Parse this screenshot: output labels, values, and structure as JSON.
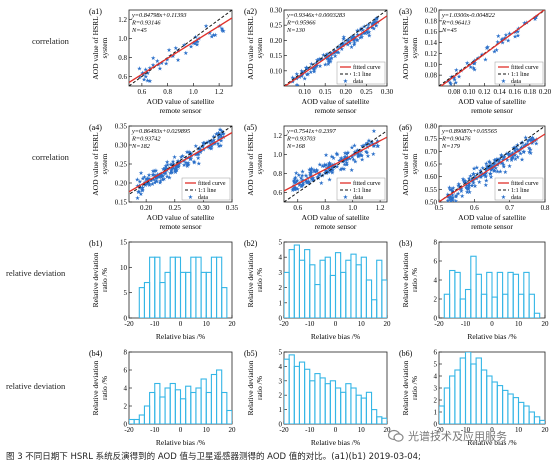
{
  "row_labels": {
    "correlation": "correlation",
    "relative_deviation": "relative deviation"
  },
  "caption": "图 3  不同日期下 HSRL 系统反演得到的 AOD 值与卫星遥感器测得的 AOD 值的对比。(a1)(b1) 2019-03-04;",
  "watermark": "光谱技术及应用服务",
  "colors": {
    "data": "#2a6fc9",
    "fit": "#e0302a",
    "line11": "#111111",
    "hist": "#35b6e6"
  },
  "chart_data": [
    {
      "id": "a1",
      "type": "scatter",
      "panel_label": "(a1)",
      "xlabel": "AOD value of satellite remote sensor",
      "ylabel": "AOD value of HSRL system",
      "xlim": [
        0.5,
        1.3
      ],
      "ylim": [
        0.5,
        1.3
      ],
      "xticks": [
        "0.6",
        "0.8",
        "1.0",
        "1.2"
      ],
      "yticks": [
        "0.6",
        "0.8",
        "1.0",
        "1.2"
      ],
      "annotation": [
        "y=0.84798x+0.11393",
        "R=0.93146",
        "N=45"
      ],
      "fit": {
        "slope": 0.84798,
        "intercept": 0.11393
      },
      "legend": [
        "fitted curve",
        "1:1 line",
        "data"
      ],
      "legend_placement": "none",
      "n_points": 45,
      "scatter": 0.05
    },
    {
      "id": "a2",
      "type": "scatter",
      "panel_label": "(a2)",
      "xlabel": "AOD value of satellite remote sensor",
      "ylabel": "AOD value of HSRL system",
      "xlim": [
        0.05,
        0.3
      ],
      "ylim": [
        0.05,
        0.3
      ],
      "xticks": [
        "0.10",
        "0.15",
        "0.20",
        "0.25",
        "0.30"
      ],
      "yticks": [
        "0.10",
        "0.15",
        "0.20",
        "0.25",
        "0.30"
      ],
      "annotation": [
        "y=0.9346x+0.0003283",
        "R=0.95966",
        "N=130"
      ],
      "fit": {
        "slope": 0.9346,
        "intercept": 0.0003283
      },
      "legend": [
        "fitted curve",
        "1:1 line",
        "data"
      ],
      "legend_placement": "bottom-right",
      "n_points": 130,
      "scatter": 0.012
    },
    {
      "id": "a3",
      "type": "scatter",
      "panel_label": "(a3)",
      "xlabel": "AOD value of satellite remote sensor",
      "ylabel": "AOD value of HSRL system",
      "xlim": [
        0.06,
        0.2
      ],
      "ylim": [
        0.06,
        0.2
      ],
      "xticks": [
        "0.08",
        "0.10",
        "0.12",
        "0.14",
        "0.16",
        "0.18",
        "0.20"
      ],
      "yticks": [
        "0.08",
        "0.10",
        "0.12",
        "0.14",
        "0.16",
        "0.18",
        "0.20"
      ],
      "annotation": [
        "y=1.0300x-0.004822",
        "R=0.96413",
        "N=45"
      ],
      "fit": {
        "slope": 1.03,
        "intercept": -0.004822
      },
      "legend": [
        "fitted curve",
        "1:1 line",
        "data"
      ],
      "legend_placement": "bottom-right",
      "n_points": 45,
      "scatter": 0.007
    },
    {
      "id": "a4",
      "type": "scatter",
      "panel_label": "(a4)",
      "xlabel": "AOD value of satellite remote sensor",
      "ylabel": "AOD value of HSRL system",
      "xlim": [
        0.17,
        0.35
      ],
      "ylim": [
        0.15,
        0.35
      ],
      "xticks": [
        "0.20",
        "0.25",
        "0.30",
        "0.35"
      ],
      "yticks": [
        "0.15",
        "0.20",
        "0.25",
        "0.30",
        "0.35"
      ],
      "annotation": [
        "y=0.86493x+0.029895",
        "R=0.93742",
        "N=182"
      ],
      "fit": {
        "slope": 0.86493,
        "intercept": 0.029895
      },
      "legend": [
        "fitted curve",
        "1:1 line",
        "data"
      ],
      "legend_placement": "bottom-right",
      "n_points": 182,
      "scatter": 0.012
    },
    {
      "id": "a5",
      "type": "scatter",
      "panel_label": "(a5)",
      "xlabel": "AOD value of satellite remote sensor",
      "ylabel": "AOD value of HSRL system",
      "xlim": [
        0.5,
        1.25
      ],
      "ylim": [
        0.5,
        1.3
      ],
      "xticks": [
        "0.6",
        "0.8",
        "1.0",
        "1.2"
      ],
      "yticks": [
        "0.6",
        "0.8",
        "1.0",
        "1.2"
      ],
      "annotation": [
        "y=0.7541x+0.2397",
        "R=0.93703",
        "N=168"
      ],
      "fit": {
        "slope": 0.7541,
        "intercept": 0.2397
      },
      "legend": [
        "fitted curve",
        "1:1 line",
        "data"
      ],
      "legend_placement": "bottom-right",
      "n_points": 168,
      "scatter": 0.045
    },
    {
      "id": "a6",
      "type": "scatter",
      "panel_label": "(a6)",
      "xlabel": "AOD value of satellite remote sensor",
      "ylabel": "AOD value of HSRL system",
      "xlim": [
        0.5,
        0.8
      ],
      "ylim": [
        0.5,
        0.8
      ],
      "xticks": [
        "0.5",
        "0.6",
        "0.7",
        "0.8"
      ],
      "yticks": [
        "0.50",
        "0.55",
        "0.60",
        "0.65",
        "0.70",
        "0.75",
        "0.80"
      ],
      "annotation": [
        "y=0.89087x+0.05565",
        "R=0.90476",
        "N=179"
      ],
      "fit": {
        "slope": 0.89087,
        "intercept": 0.05565
      },
      "legend": [
        "fitted curve",
        "1:1 line",
        "data"
      ],
      "legend_placement": "bottom-right",
      "n_points": 179,
      "scatter": 0.018
    },
    {
      "id": "b1",
      "type": "histogram",
      "panel_label": "(b1)",
      "xlabel": "Relative bias /%",
      "ylabel": "Relative deviation ratio /%",
      "xlim": [
        -20,
        20
      ],
      "ylim": [
        0,
        15
      ],
      "xticks": [
        "-20",
        "-10",
        "0",
        "10",
        "20"
      ],
      "yticks": [
        "0",
        "5",
        "10",
        "15"
      ],
      "bins_x": [
        -16,
        -14,
        -12,
        -10,
        -8,
        -6,
        -4,
        -2,
        0,
        2,
        4,
        6,
        8,
        10,
        12,
        14,
        16
      ],
      "values": [
        6,
        7,
        12,
        12,
        7,
        9,
        12,
        12,
        9,
        9,
        12,
        12,
        9,
        9,
        12,
        12,
        6
      ]
    },
    {
      "id": "b2",
      "type": "histogram",
      "panel_label": "(b2)",
      "xlabel": "Relative bias /%",
      "ylabel": "Relative deviation ratio /%",
      "xlim": [
        -20,
        20
      ],
      "ylim": [
        0,
        5
      ],
      "xticks": [
        "-20",
        "-10",
        "0",
        "10",
        "20"
      ],
      "yticks": [
        "0",
        "1",
        "2",
        "3",
        "4",
        "5"
      ],
      "bins_x": [
        -20,
        -18,
        -16,
        -14,
        -12,
        -10,
        -8,
        -6,
        -4,
        -2,
        0,
        2,
        4,
        6,
        8,
        10,
        12,
        14,
        16,
        18
      ],
      "values": [
        3.0,
        4.5,
        4.8,
        3.8,
        4.5,
        3.5,
        2.2,
        3.8,
        4.0,
        2.8,
        4.3,
        3.0,
        3.8,
        4.2,
        3.5,
        4.0,
        2.5,
        1.2,
        3.8,
        2.5
      ]
    },
    {
      "id": "b3",
      "type": "histogram",
      "panel_label": "(b3)",
      "xlabel": "Relative bias /%",
      "ylabel": "Relative deviation ratio /%",
      "xlim": [
        -20,
        20
      ],
      "ylim": [
        0,
        8
      ],
      "xticks": [
        "-20",
        "-10",
        "0",
        "10",
        "20"
      ],
      "yticks": [
        "0",
        "2",
        "4",
        "6",
        "8"
      ],
      "bins_x": [
        -18,
        -16,
        -14,
        -12,
        -10,
        -8,
        -6,
        -4,
        -2,
        0,
        2,
        4,
        6,
        8,
        10,
        12,
        14,
        16
      ],
      "values": [
        2.5,
        5.0,
        4.8,
        2.0,
        3.0,
        6.5,
        4.6,
        2.5,
        4.8,
        2.2,
        4.8,
        2.5,
        4.8,
        4.6,
        2.5,
        4.8,
        2.5,
        0.5
      ]
    },
    {
      "id": "b4",
      "type": "histogram",
      "panel_label": "(b4)",
      "xlabel": "Relative bias /%",
      "ylabel": "Relative deviation ratio /%",
      "xlim": [
        -20,
        20
      ],
      "ylim": [
        0,
        8
      ],
      "xticks": [
        "-20",
        "-10",
        "0",
        "10",
        "20"
      ],
      "yticks": [
        "0",
        "2",
        "4",
        "6",
        "8"
      ],
      "bins_x": [
        -20,
        -18,
        -16,
        -14,
        -12,
        -10,
        -8,
        -6,
        -4,
        -2,
        0,
        2,
        4,
        6,
        8,
        10,
        12,
        14,
        16,
        18
      ],
      "values": [
        0.5,
        0.5,
        1.0,
        2.0,
        3.5,
        4.5,
        3.0,
        4.0,
        4.5,
        3.8,
        2.8,
        4.2,
        3.5,
        4.0,
        5.0,
        3.5,
        5.5,
        6.0,
        3.5,
        1.5
      ]
    },
    {
      "id": "b5",
      "type": "histogram",
      "panel_label": "(b5)",
      "xlabel": "Relative bias /%",
      "ylabel": "Relative deviation ratio /%",
      "xlim": [
        -20,
        20
      ],
      "ylim": [
        0,
        5
      ],
      "xticks": [
        "-20",
        "-10",
        "0",
        "10",
        "20"
      ],
      "yticks": [
        "0",
        "1",
        "2",
        "3",
        "4",
        "5"
      ],
      "bins_x": [
        -20,
        -18,
        -16,
        -14,
        -12,
        -10,
        -8,
        -6,
        -4,
        -2,
        0,
        2,
        4,
        6,
        8,
        10,
        12,
        14,
        16,
        18
      ],
      "values": [
        4.5,
        4.8,
        4.0,
        4.3,
        3.8,
        3.0,
        3.5,
        3.2,
        2.8,
        3.0,
        2.5,
        2.2,
        2.8,
        2.5,
        2.0,
        1.8,
        2.2,
        1.0,
        0.5,
        0.4
      ]
    },
    {
      "id": "b6",
      "type": "histogram",
      "panel_label": "(b6)",
      "xlabel": "Relative bias /%",
      "ylabel": "Relative deviation ratio /%",
      "xlim": [
        -20,
        20
      ],
      "ylim": [
        0,
        6
      ],
      "xticks": [
        "-20",
        "-10",
        "0",
        "10",
        "20"
      ],
      "yticks": [
        "0",
        "1",
        "2",
        "3",
        "4",
        "5",
        "6"
      ],
      "bins_x": [
        -20,
        -18,
        -16,
        -14,
        -12,
        -10,
        -8,
        -6,
        -4,
        -2,
        0,
        2,
        4,
        6,
        8,
        10,
        12,
        14,
        16,
        18
      ],
      "values": [
        1.5,
        3.0,
        4.0,
        4.5,
        5.5,
        6.0,
        5.0,
        5.5,
        4.5,
        4.0,
        3.5,
        3.2,
        2.8,
        2.5,
        2.2,
        1.8,
        1.5,
        1.0,
        0.6,
        0.3
      ]
    }
  ]
}
